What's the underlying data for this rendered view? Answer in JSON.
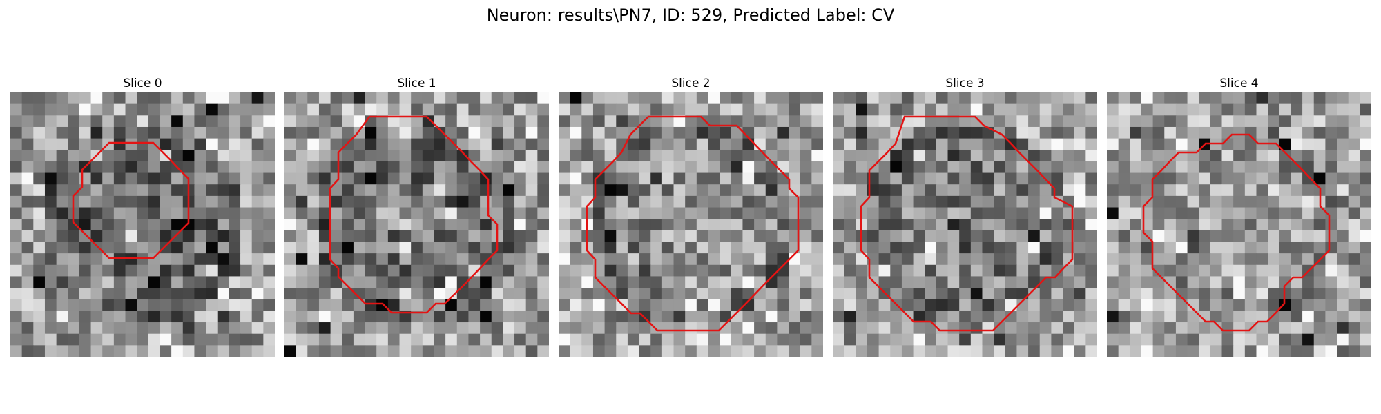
{
  "figure": {
    "title": "Neuron: results\\PN7, ID: 529, Predicted Label: CV"
  },
  "panels": [
    {
      "title": "Slice 0",
      "seed": 11,
      "center_tone": 0.42,
      "ring_tone": 0.4
    },
    {
      "title": "Slice 1",
      "seed": 23,
      "center_tone": 0.45,
      "ring_tone": 0.4
    },
    {
      "title": "Slice 2",
      "seed": 37,
      "center_tone": 0.58,
      "ring_tone": 0.42
    },
    {
      "title": "Slice 3",
      "seed": 41,
      "center_tone": 0.5,
      "ring_tone": 0.42
    },
    {
      "title": "Slice 4",
      "seed": 53,
      "center_tone": 0.6,
      "ring_tone": 0.55
    }
  ],
  "contour_color": "#e31414",
  "colormap": "gray"
}
